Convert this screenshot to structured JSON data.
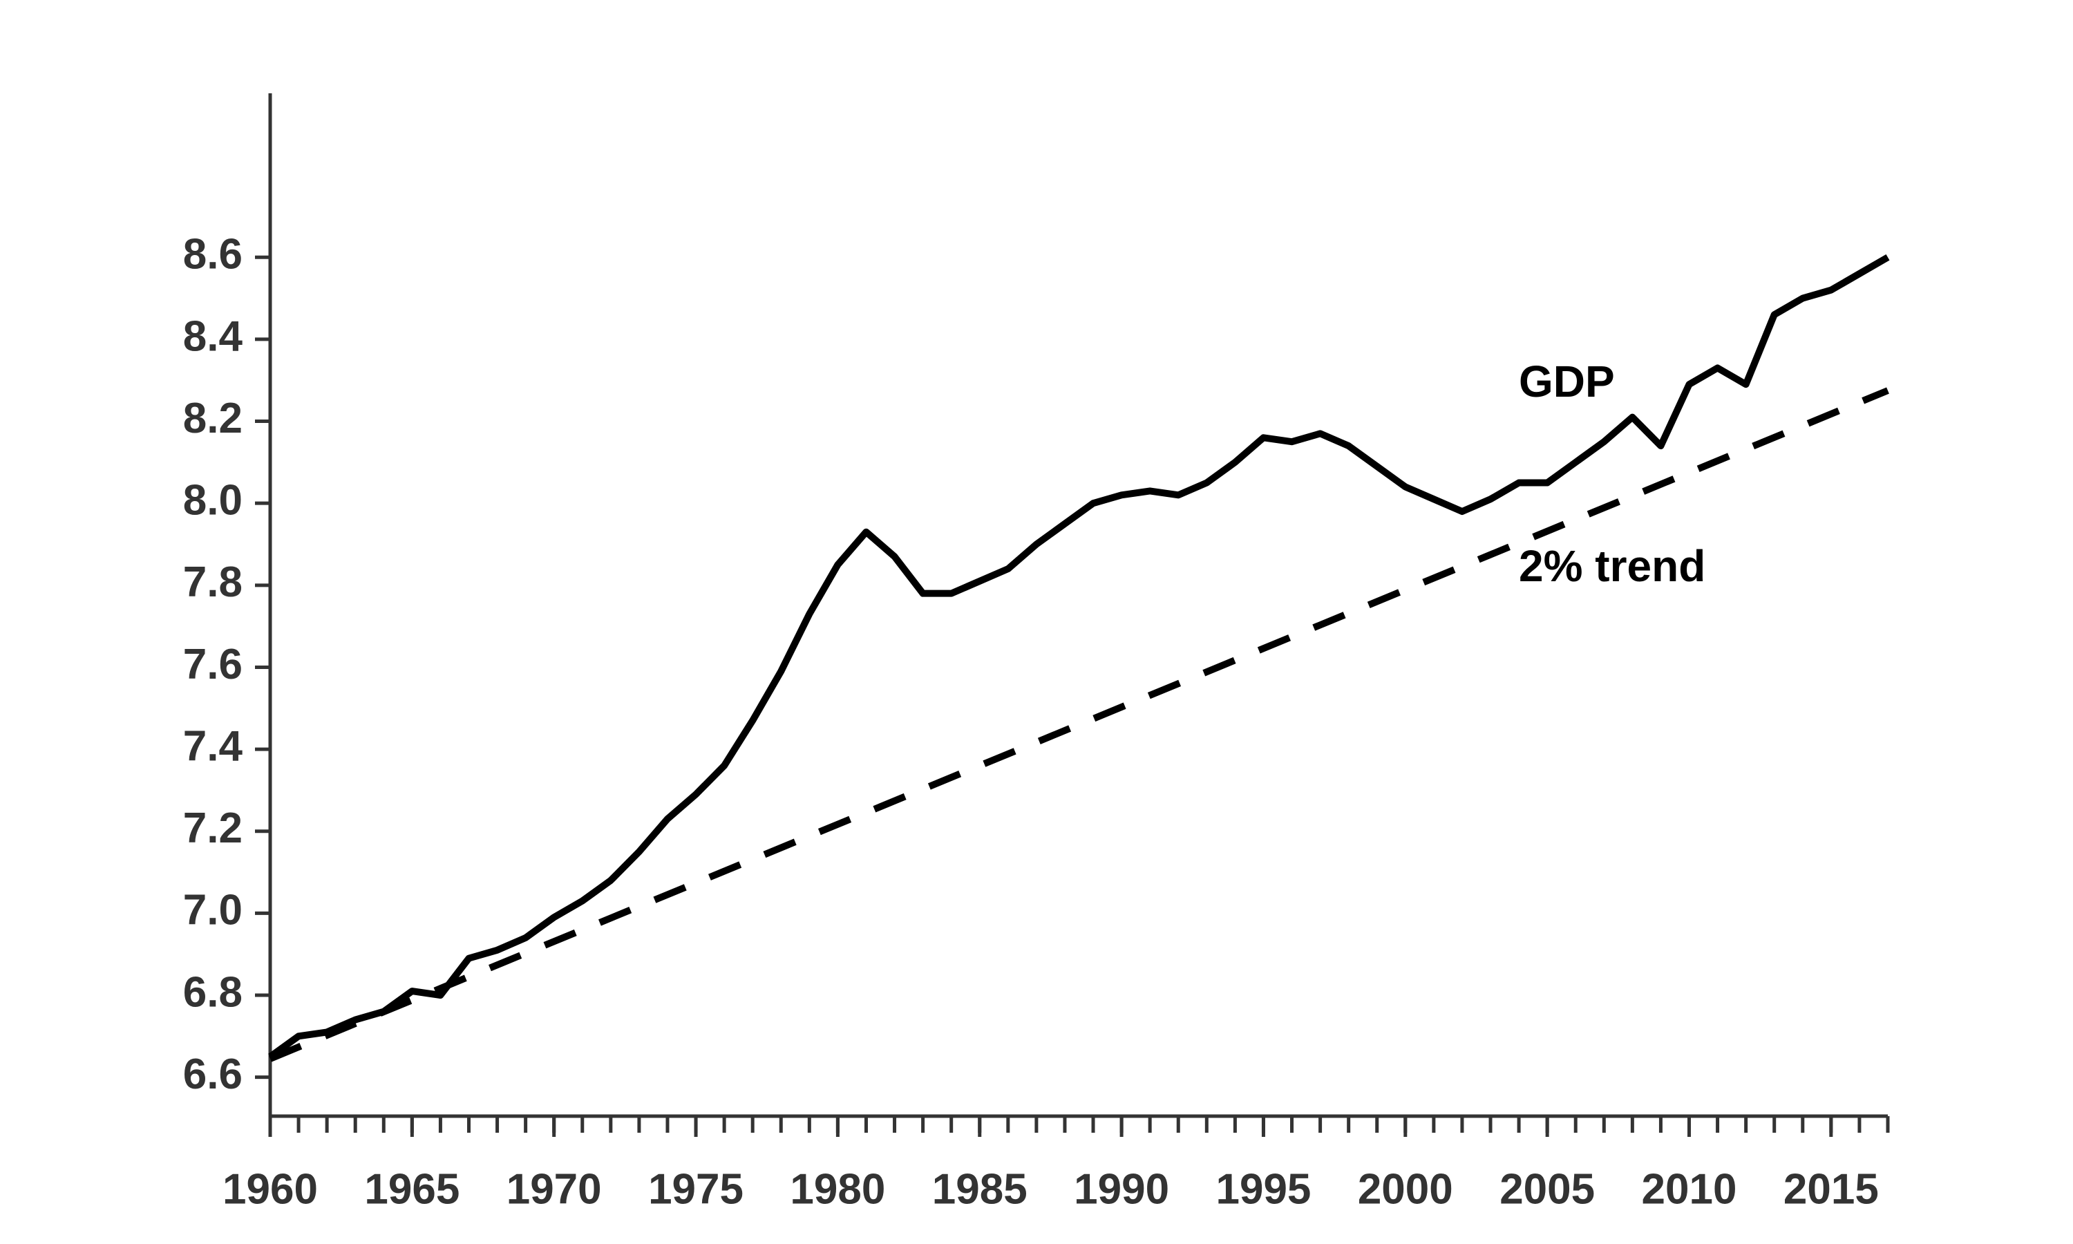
{
  "chart_data": {
    "type": "line",
    "x": [
      1960,
      1961,
      1962,
      1963,
      1964,
      1965,
      1966,
      1967,
      1968,
      1969,
      1970,
      1971,
      1972,
      1973,
      1974,
      1975,
      1976,
      1977,
      1978,
      1979,
      1980,
      1981,
      1982,
      1983,
      1984,
      1985,
      1986,
      1987,
      1988,
      1989,
      1990,
      1991,
      1992,
      1993,
      1994,
      1995,
      1996,
      1997,
      1998,
      1999,
      2000,
      2001,
      2002,
      2003,
      2004,
      2005,
      2006,
      2007,
      2008,
      2009,
      2010,
      2011,
      2012,
      2013,
      2014,
      2015,
      2016,
      2017
    ],
    "series": [
      {
        "name": "GDP",
        "color": "#000000",
        "style": "solid",
        "values": [
          6.65,
          6.7,
          6.71,
          6.74,
          6.76,
          6.81,
          6.8,
          6.89,
          6.91,
          6.94,
          6.99,
          7.03,
          7.08,
          7.15,
          7.23,
          7.29,
          7.36,
          7.47,
          7.59,
          7.73,
          7.85,
          7.93,
          7.87,
          7.78,
          7.78,
          7.81,
          7.84,
          7.9,
          7.95,
          8.0,
          8.02,
          8.03,
          8.02,
          8.05,
          8.1,
          8.16,
          8.15,
          8.17,
          8.14,
          8.09,
          8.04,
          8.01,
          7.98,
          8.01,
          8.05,
          8.05,
          8.1,
          8.15,
          8.21,
          8.14,
          8.29,
          8.33,
          8.29,
          8.46,
          8.5,
          8.52,
          8.56,
          8.6
        ]
      },
      {
        "name": "2% trend",
        "color": "#000000",
        "style": "dashed",
        "x": [
          1960,
          2017
        ],
        "values": [
          6.645,
          8.275
        ]
      }
    ],
    "xlim": [
      1960,
      2017
    ],
    "xticks": [
      1960,
      1965,
      1970,
      1975,
      1980,
      1985,
      1990,
      1995,
      2000,
      2005,
      2010,
      2015
    ],
    "xminorticks": [
      1960,
      1961,
      1962,
      1963,
      1964,
      1965,
      1966,
      1967,
      1968,
      1969,
      1970,
      1971,
      1972,
      1973,
      1974,
      1975,
      1976,
      1977,
      1978,
      1979,
      1980,
      1981,
      1982,
      1983,
      1984,
      1985,
      1986,
      1987,
      1988,
      1989,
      1990,
      1991,
      1992,
      1993,
      1994,
      1995,
      1996,
      1997,
      1998,
      1999,
      2000,
      2001,
      2002,
      2003,
      2004,
      2005,
      2006,
      2007,
      2008,
      2009,
      2010,
      2011,
      2012,
      2013,
      2014,
      2015,
      2016,
      2017
    ],
    "ylim": [
      6.505,
      9.0
    ],
    "yticks": [
      6.6,
      6.8,
      {
        "value": 7.0,
        "label": "7.0"
      },
      7.2,
      7.4,
      7.6,
      7.8,
      {
        "value": 8.0,
        "label": "8.0"
      },
      8.2,
      8.4,
      8.6
    ],
    "grid": false
  }
}
